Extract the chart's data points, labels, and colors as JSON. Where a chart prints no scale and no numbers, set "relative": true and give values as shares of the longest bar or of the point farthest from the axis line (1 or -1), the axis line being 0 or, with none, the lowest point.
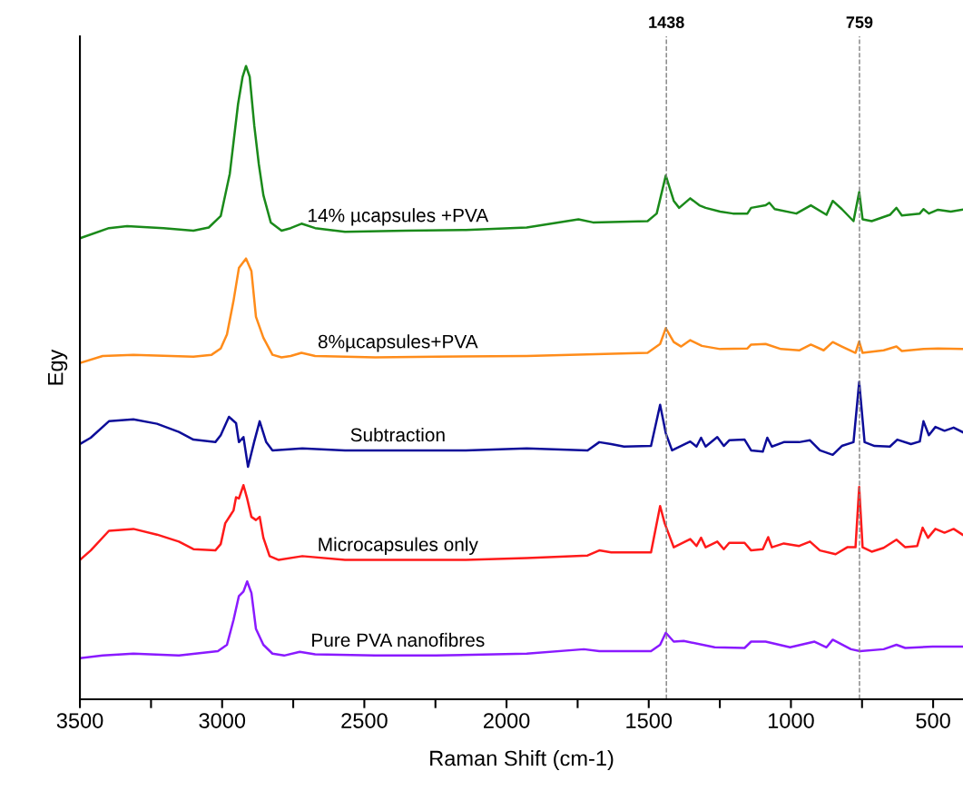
{
  "chart_data": {
    "type": "line",
    "relative": true,
    "xlabel": "Raman Shift (cm-1)",
    "ylabel": "Egy",
    "xlim": [
      3500,
      395
    ],
    "xticks": [
      3500,
      {
        "value": 3250,
        "label": null
      },
      3000,
      {
        "value": 2750,
        "label": null
      },
      2500,
      {
        "value": 2250,
        "label": null
      },
      2000,
      {
        "value": 1750,
        "label": null
      },
      1500,
      {
        "value": 1250,
        "label": null
      },
      1000,
      {
        "value": 750,
        "label": null
      },
      500
    ],
    "grid": false,
    "legend": false,
    "marker": "none",
    "line_style": "solid",
    "ref_lines": [
      {
        "axis": "x",
        "value": 1438,
        "label": "1438",
        "color": "#808080",
        "line_style": "dashed"
      },
      {
        "axis": "x",
        "value": 759,
        "label": "759",
        "color": "#808080",
        "line_style": "dashed"
      }
    ],
    "series": [
      {
        "name": "14% µcapsules +PVA",
        "color": "#1a8a1a",
        "x": [
          3500,
          3398,
          3334,
          3206,
          3101,
          3047,
          3005,
          2973,
          2944,
          2928,
          2916,
          2903,
          2887,
          2871,
          2855,
          2829,
          2791,
          2759,
          2721,
          2673,
          2568,
          2354,
          2143,
          1929,
          1747,
          1696,
          1504,
          1472,
          1440,
          1412,
          1393,
          1354,
          1322,
          1300,
          1249,
          1204,
          1153,
          1140,
          1089,
          1076,
          1057,
          981,
          930,
          875,
          853,
          821,
          780,
          760,
          748,
          716,
          652,
          629,
          610,
          547,
          534,
          515,
          483,
          438,
          397
        ],
        "values": [
          0.728,
          0.744,
          0.747,
          0.744,
          0.74,
          0.745,
          0.763,
          0.83,
          0.94,
          0.983,
          1.0,
          0.983,
          0.906,
          0.845,
          0.796,
          0.753,
          0.74,
          0.744,
          0.751,
          0.744,
          0.738,
          0.74,
          0.741,
          0.745,
          0.758,
          0.753,
          0.755,
          0.767,
          0.827,
          0.787,
          0.776,
          0.791,
          0.78,
          0.776,
          0.77,
          0.767,
          0.767,
          0.776,
          0.78,
          0.784,
          0.774,
          0.767,
          0.78,
          0.765,
          0.787,
          0.774,
          0.755,
          0.801,
          0.758,
          0.755,
          0.765,
          0.776,
          0.764,
          0.767,
          0.774,
          0.767,
          0.773,
          0.77,
          0.773
        ]
      },
      {
        "name": "8%µcapsules+PVA",
        "color": "#ff8c1a",
        "x": [
          3500,
          3420,
          3312,
          3101,
          3037,
          3005,
          2983,
          2960,
          2941,
          2916,
          2897,
          2881,
          2855,
          2823,
          2791,
          2759,
          2721,
          2673,
          2462,
          2248,
          1929,
          1504,
          1460,
          1440,
          1412,
          1386,
          1354,
          1313,
          1249,
          1153,
          1140,
          1089,
          1035,
          971,
          930,
          885,
          853,
          821,
          773,
          760,
          748,
          674,
          629,
          610,
          534,
          483,
          397
        ],
        "values": [
          0.531,
          0.542,
          0.544,
          0.541,
          0.544,
          0.554,
          0.576,
          0.629,
          0.681,
          0.696,
          0.676,
          0.604,
          0.571,
          0.544,
          0.54,
          0.542,
          0.547,
          0.542,
          0.54,
          0.541,
          0.542,
          0.547,
          0.561,
          0.586,
          0.564,
          0.557,
          0.567,
          0.558,
          0.553,
          0.554,
          0.56,
          0.561,
          0.553,
          0.551,
          0.56,
          0.551,
          0.564,
          0.557,
          0.547,
          0.565,
          0.547,
          0.551,
          0.557,
          0.55,
          0.553,
          0.554,
          0.553
        ]
      },
      {
        "name": "Subtraction",
        "color": "#0d0d99",
        "x": [
          3500,
          3462,
          3398,
          3312,
          3229,
          3152,
          3101,
          3024,
          3005,
          2976,
          2951,
          2941,
          2925,
          2909,
          2887,
          2868,
          2845,
          2823,
          2718,
          2568,
          2354,
          2143,
          1929,
          1715,
          1674,
          1632,
          1587,
          1492,
          1460,
          1440,
          1418,
          1354,
          1332,
          1316,
          1300,
          1259,
          1236,
          1217,
          1163,
          1140,
          1099,
          1083,
          1067,
          1025,
          971,
          933,
          898,
          853,
          821,
          780,
          760,
          741,
          706,
          652,
          626,
          578,
          547,
          534,
          515,
          492,
          460,
          428,
          397
        ],
        "values": [
          0.403,
          0.413,
          0.439,
          0.442,
          0.435,
          0.422,
          0.41,
          0.406,
          0.417,
          0.446,
          0.436,
          0.406,
          0.414,
          0.367,
          0.407,
          0.439,
          0.406,
          0.393,
          0.396,
          0.393,
          0.393,
          0.393,
          0.396,
          0.393,
          0.406,
          0.403,
          0.399,
          0.4,
          0.465,
          0.42,
          0.393,
          0.407,
          0.399,
          0.413,
          0.399,
          0.414,
          0.4,
          0.409,
          0.41,
          0.393,
          0.391,
          0.413,
          0.399,
          0.406,
          0.406,
          0.409,
          0.393,
          0.386,
          0.4,
          0.406,
          0.501,
          0.406,
          0.4,
          0.399,
          0.41,
          0.403,
          0.407,
          0.439,
          0.417,
          0.43,
          0.424,
          0.429,
          0.422
        ]
      },
      {
        "name": "Microcapsules only",
        "color": "#ff1a1a",
        "x": [
          3500,
          3462,
          3398,
          3312,
          3229,
          3152,
          3101,
          3024,
          3005,
          2989,
          2960,
          2951,
          2941,
          2925,
          2912,
          2897,
          2881,
          2868,
          2855,
          2833,
          2801,
          2718,
          2568,
          2354,
          2143,
          1929,
          1715,
          1674,
          1632,
          1492,
          1460,
          1444,
          1412,
          1354,
          1332,
          1316,
          1300,
          1259,
          1236,
          1217,
          1163,
          1140,
          1099,
          1080,
          1067,
          1025,
          971,
          933,
          898,
          843,
          802,
          773,
          760,
          748,
          716,
          674,
          629,
          598,
          556,
          537,
          518,
          492,
          460,
          428,
          397
        ],
        "values": [
          0.22,
          0.235,
          0.266,
          0.269,
          0.26,
          0.249,
          0.237,
          0.235,
          0.245,
          0.278,
          0.298,
          0.319,
          0.317,
          0.338,
          0.317,
          0.288,
          0.283,
          0.288,
          0.255,
          0.226,
          0.22,
          0.226,
          0.22,
          0.22,
          0.22,
          0.223,
          0.227,
          0.235,
          0.232,
          0.232,
          0.305,
          0.278,
          0.24,
          0.253,
          0.242,
          0.255,
          0.24,
          0.249,
          0.237,
          0.247,
          0.247,
          0.235,
          0.237,
          0.256,
          0.24,
          0.246,
          0.242,
          0.249,
          0.235,
          0.229,
          0.24,
          0.24,
          0.335,
          0.24,
          0.233,
          0.239,
          0.252,
          0.24,
          0.242,
          0.271,
          0.255,
          0.269,
          0.263,
          0.269,
          0.26
        ]
      },
      {
        "name": "Pure PVA nanofibres",
        "color": "#8a1aff",
        "x": [
          3500,
          3420,
          3312,
          3152,
          3015,
          2983,
          2960,
          2941,
          2925,
          2912,
          2897,
          2881,
          2855,
          2823,
          2782,
          2727,
          2673,
          2462,
          2248,
          1929,
          1728,
          1674,
          1492,
          1460,
          1440,
          1412,
          1377,
          1268,
          1163,
          1140,
          1089,
          1003,
          917,
          875,
          853,
          789,
          757,
          674,
          629,
          598,
          502,
          397
        ],
        "values": [
          0.065,
          0.069,
          0.072,
          0.069,
          0.076,
          0.086,
          0.125,
          0.163,
          0.17,
          0.186,
          0.168,
          0.111,
          0.086,
          0.072,
          0.069,
          0.075,
          0.071,
          0.069,
          0.069,
          0.072,
          0.079,
          0.076,
          0.076,
          0.086,
          0.105,
          0.091,
          0.092,
          0.082,
          0.081,
          0.091,
          0.091,
          0.082,
          0.091,
          0.082,
          0.094,
          0.079,
          0.076,
          0.079,
          0.086,
          0.081,
          0.083,
          0.083
        ]
      }
    ]
  }
}
